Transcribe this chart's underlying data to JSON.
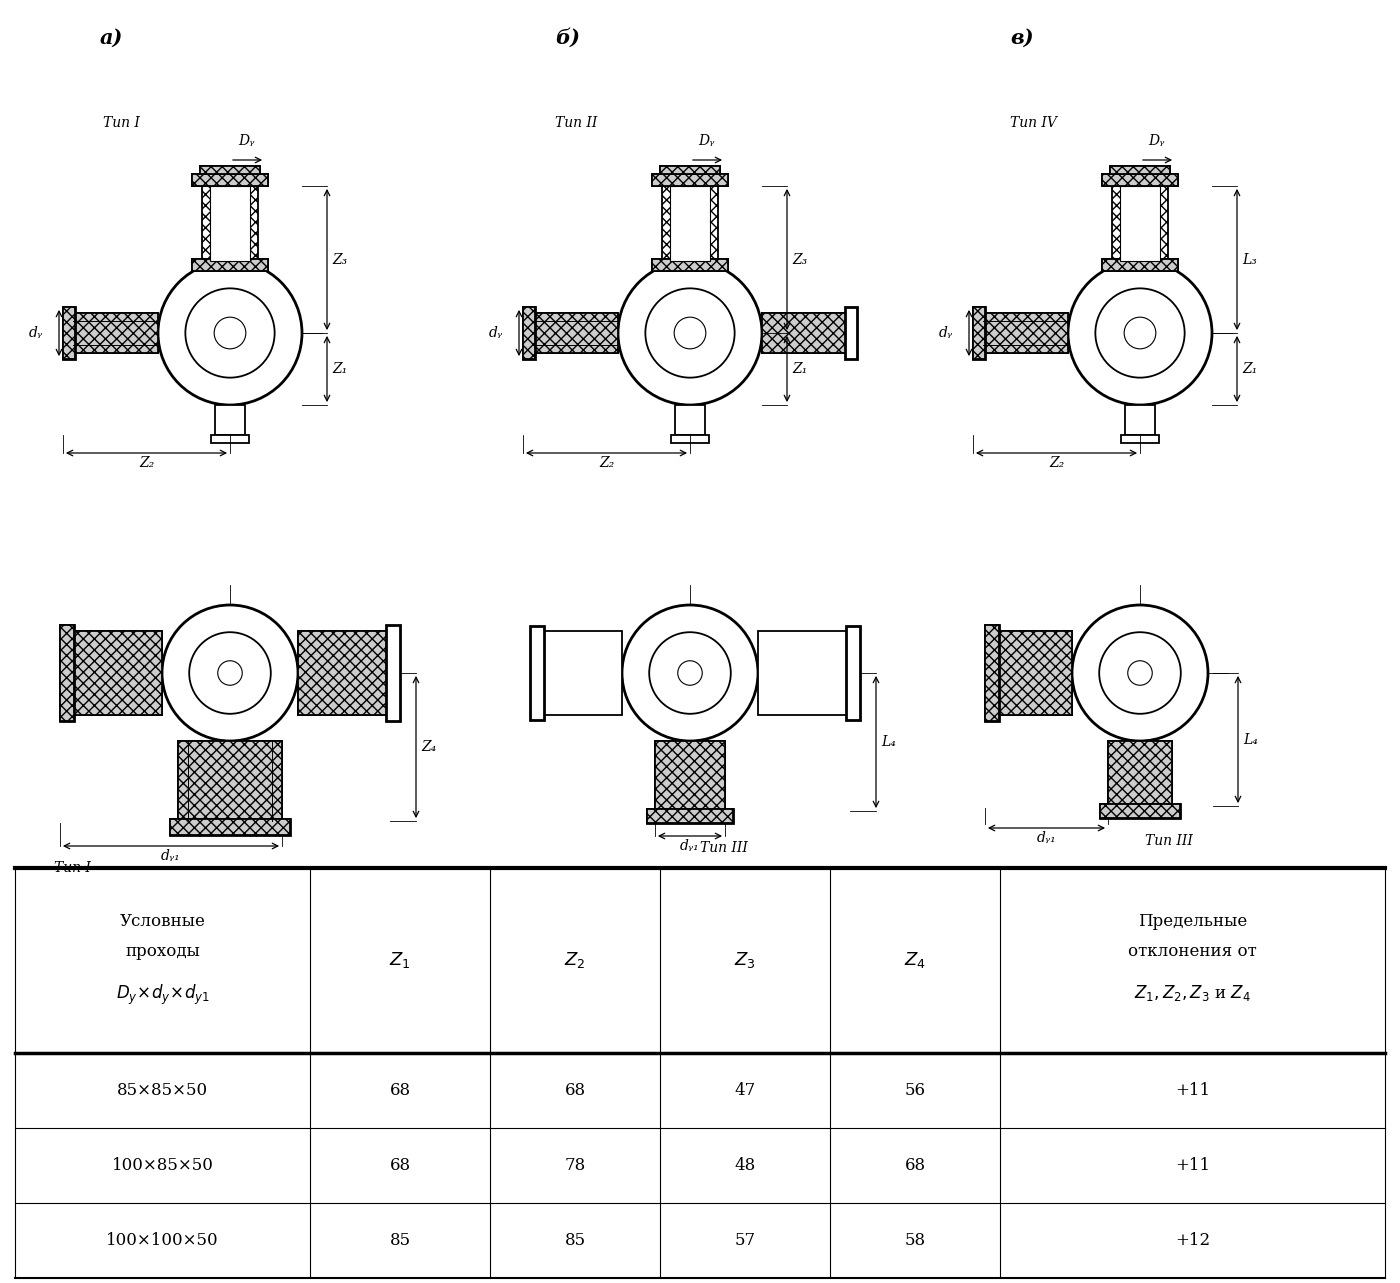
{
  "bg_color": "#ffffff",
  "diagrams": {
    "a_label": "a)",
    "b_label": "б)",
    "v_label": "в)",
    "tip1_label": "Тип I",
    "tip2_label": "Тип II",
    "tip4_label": "Тип IV",
    "tip1b_label": "Тип I",
    "tip3b_label": "Тип III",
    "tip3c_label": "Тип III",
    "Dy_label": "Dᵧ",
    "dy_label": "dᵧ",
    "dy1_label": "dᵧ₁",
    "Z1_label": "Z₁",
    "Z2_label": "Z₂",
    "Z3_label": "Z₃",
    "Z4_label": "Z₄",
    "L3_label": "L₃",
    "L4_label": "L₄"
  },
  "rows": [
    [
      "85×85×50",
      "68",
      "68",
      "47",
      "56",
      "+11"
    ],
    [
      "100×85×50",
      "68",
      "78",
      "48",
      "68",
      "+11"
    ],
    [
      "100×100×50",
      "85",
      "85",
      "57",
      "58",
      "+12"
    ]
  ]
}
